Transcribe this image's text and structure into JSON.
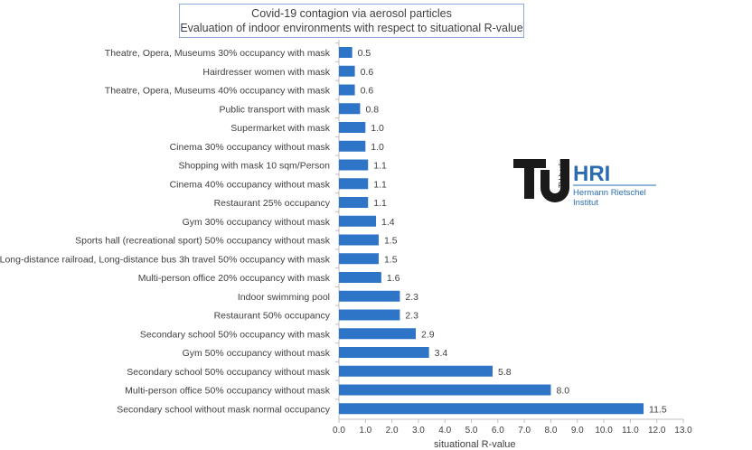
{
  "title_lines": [
    "Covid-19 contagion via aerosol particles",
    "Evaluation of indoor environments with respect to situational R-value"
  ],
  "logo": {
    "mark": "TU berlin",
    "name": "HRI",
    "institute_line1": "Hermann Rietschel",
    "institute_line2": "Institut",
    "colors": {
      "tu": "#1a1a1a",
      "hri": "#2b6cb0"
    }
  },
  "chart_data": {
    "type": "bar",
    "orientation": "horizontal",
    "categories": [
      "Theatre, Opera, Museums 30% occupancy with mask",
      "Hairdresser women with mask",
      "Theatre, Opera, Museums 40% occupancy with mask",
      "Public transport with mask",
      "Supermarket with mask",
      "Cinema 30% occupancy without mask",
      "Shopping with mask 10 sqm/Person",
      "Cinema 40% occupancy without mask",
      "Restaurant 25% occupancy",
      "Gym 30% occupancy without mask",
      "Sports hall (recreational sport) 50% occupancy without mask",
      "Long-distance railroad, Long-distance bus 3h travel 50% occupancy with mask",
      "Multi-person office 20% occupancy with mask",
      "Indoor swimming pool",
      "Restaurant 50% occupancy",
      "Secondary school 50% occupancy with mask",
      "Gym 50% occupancy without mask",
      "Secondary school 50% occupancy without mask",
      "Multi-person office 50% occupancy without mask",
      "Secondary school without mask normal occupancy"
    ],
    "values": [
      0.5,
      0.6,
      0.6,
      0.8,
      1.0,
      1.0,
      1.1,
      1.1,
      1.1,
      1.4,
      1.5,
      1.5,
      1.6,
      2.3,
      2.3,
      2.9,
      3.4,
      5.8,
      8.0,
      11.5
    ],
    "value_labels": [
      "0.5",
      "0.6",
      "0.6",
      "0.8",
      "1.0",
      "1.0",
      "1.1",
      "1.1",
      "1.1",
      "1.4",
      "1.5",
      "1.5",
      "1.6",
      "2.3",
      "2.3",
      "2.9",
      "3.4",
      "5.8",
      "8.0",
      "11.5"
    ],
    "xlim": [
      0,
      13
    ],
    "xticks": [
      "0.0",
      "1.0",
      "2.0",
      "3.0",
      "4.0",
      "5.0",
      "6.0",
      "7.0",
      "8.0",
      "9.0",
      "10.0",
      "11.0",
      "12.0",
      "13.0"
    ],
    "xlabel": "situational R-value",
    "bar_color": "#2e75c8",
    "grid": false
  }
}
